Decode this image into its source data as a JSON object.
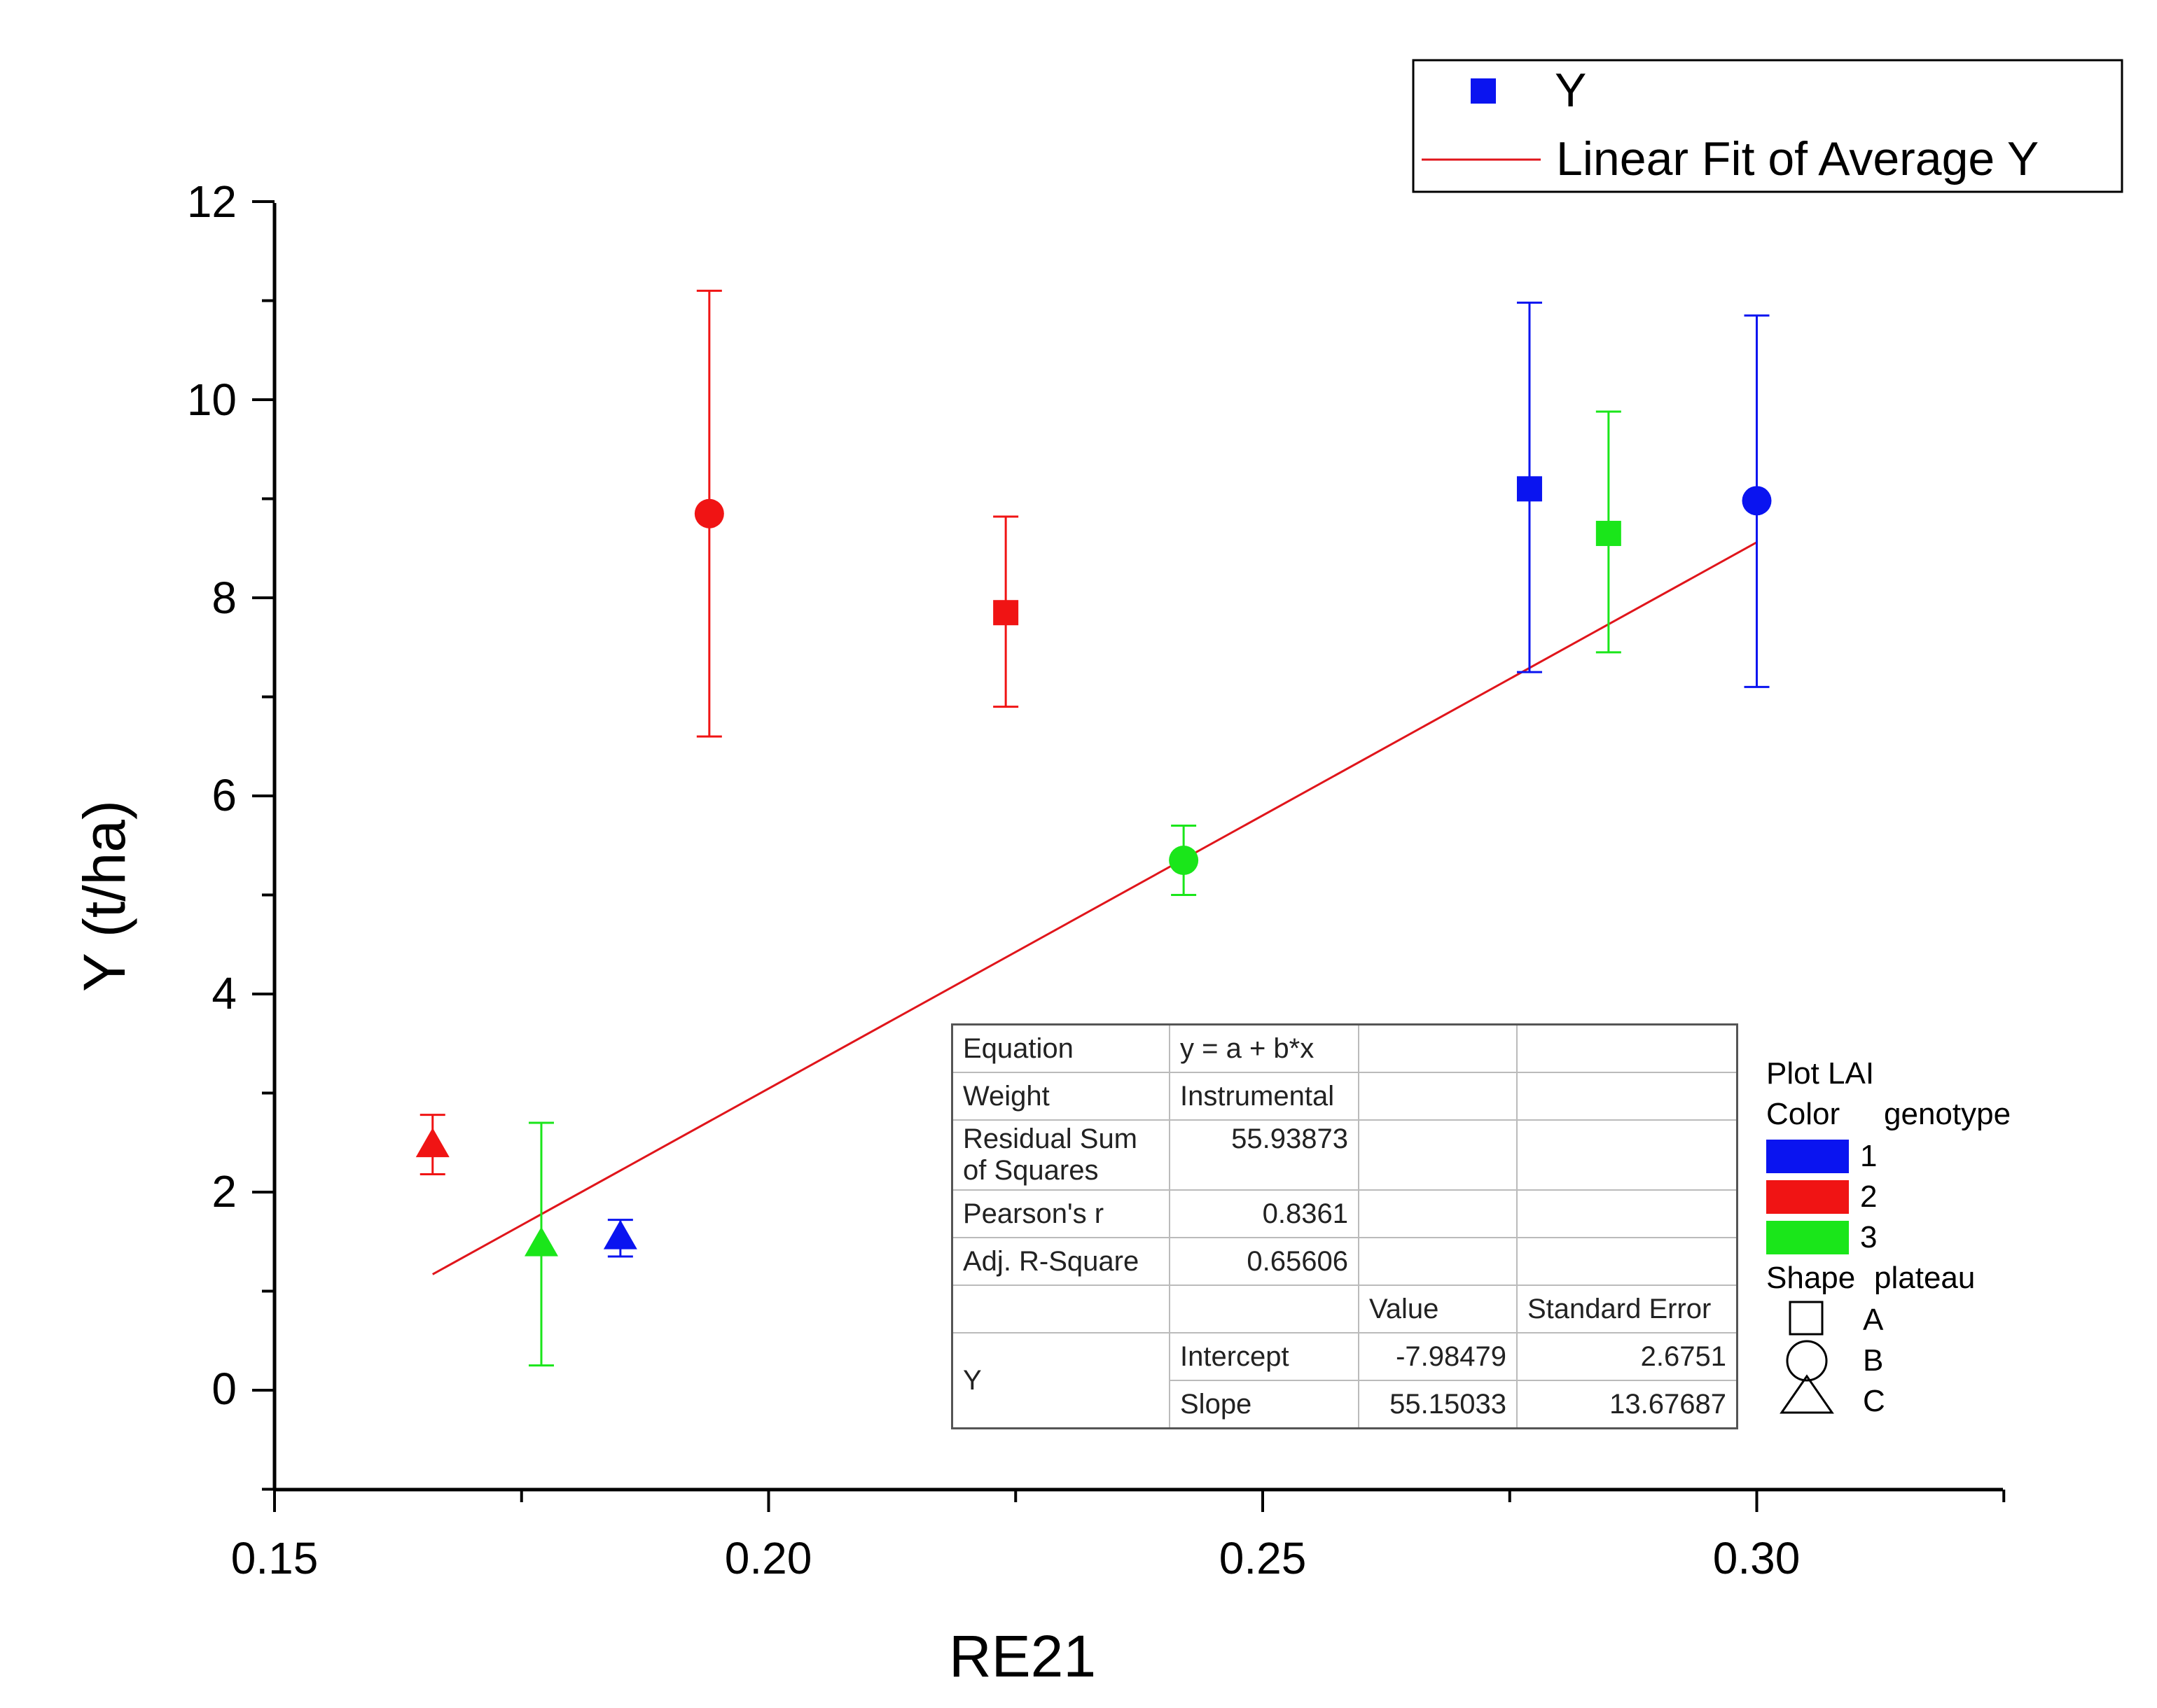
{
  "chart_data": {
    "type": "scatter",
    "title": "",
    "xlabel": "RE21",
    "ylabel": "Y (t/ha)",
    "xlim": [
      0.15,
      0.325
    ],
    "ylim": [
      -1,
      12
    ],
    "x_ticks": [
      "0.15",
      "0.20",
      "0.25",
      "0.30"
    ],
    "x_tick_values": [
      0.15,
      0.2,
      0.25,
      0.3
    ],
    "y_ticks": [
      "0",
      "2",
      "4",
      "6",
      "8",
      "10",
      "12"
    ],
    "y_tick_values": [
      0,
      2,
      4,
      6,
      8,
      10,
      12
    ],
    "points": [
      {
        "x": 0.166,
        "y": 2.48,
        "err_low": 2.18,
        "err_high": 2.78,
        "genotype": "2",
        "plateau": "C"
      },
      {
        "x": 0.177,
        "y": 1.48,
        "err_low": 0.25,
        "err_high": 2.7,
        "genotype": "3",
        "plateau": "C"
      },
      {
        "x": 0.185,
        "y": 1.55,
        "err_low": 1.35,
        "err_high": 1.72,
        "genotype": "1",
        "plateau": "C"
      },
      {
        "x": 0.194,
        "y": 8.85,
        "err_low": 6.6,
        "err_high": 11.1,
        "genotype": "2",
        "plateau": "B"
      },
      {
        "x": 0.224,
        "y": 7.85,
        "err_low": 6.9,
        "err_high": 8.82,
        "genotype": "2",
        "plateau": "A"
      },
      {
        "x": 0.242,
        "y": 5.35,
        "err_low": 5.0,
        "err_high": 5.7,
        "genotype": "3",
        "plateau": "B"
      },
      {
        "x": 0.277,
        "y": 9.1,
        "err_low": 7.25,
        "err_high": 10.98,
        "genotype": "1",
        "plateau": "A"
      },
      {
        "x": 0.285,
        "y": 8.65,
        "err_low": 7.45,
        "err_high": 9.88,
        "genotype": "3",
        "plateau": "A"
      },
      {
        "x": 0.3,
        "y": 8.98,
        "err_low": 7.1,
        "err_high": 10.85,
        "genotype": "1",
        "plateau": "B"
      }
    ],
    "fit_line": {
      "intercept": -7.98479,
      "slope": 55.15033,
      "x_start": 0.166,
      "x_end": 0.3,
      "color": "#e0151b"
    },
    "colors": {
      "1": "#0a14f0",
      "2": "#f01414",
      "3": "#1ae61a"
    },
    "legend": {
      "position": "top-right",
      "entries": [
        {
          "label": "Y",
          "symbol": "square",
          "color": "#0a14f0"
        },
        {
          "label": "Linear Fit of Average Y",
          "symbol": "line",
          "color": "#e0151b"
        }
      ]
    },
    "key": {
      "plot_label": "Plot LAI",
      "color_label": "Color",
      "color_var": "genotype",
      "genotypes": [
        {
          "label": "1",
          "color": "#0a14f0"
        },
        {
          "label": "2",
          "color": "#f01414"
        },
        {
          "label": "3",
          "color": "#1ae61a"
        }
      ],
      "shape_label": "Shape",
      "shape_var": "plateau",
      "plateaus": [
        {
          "label": "A",
          "shape": "square"
        },
        {
          "label": "B",
          "shape": "circle"
        },
        {
          "label": "C",
          "shape": "triangle"
        }
      ]
    },
    "fit_table": {
      "equation_label": "Equation",
      "equation": "y = a + b*x",
      "weight_label": "Weight",
      "weight": "Instrumental",
      "rss_label_1": "Residual Sum",
      "rss_label_2": "of Squares",
      "rss": "55.93873",
      "pearson_label": "Pearson's r",
      "pearson": "0.8361",
      "adjr2_label": "Adj. R-Square",
      "adjr2": "0.65606",
      "value_header": "Value",
      "se_header": "Standard Error",
      "var_label": "Y",
      "intercept_label": "Intercept",
      "intercept_value": "-7.98479",
      "intercept_se": "2.6751",
      "slope_label": "Slope",
      "slope_value": "55.15033",
      "slope_se": "13.67687"
    }
  }
}
